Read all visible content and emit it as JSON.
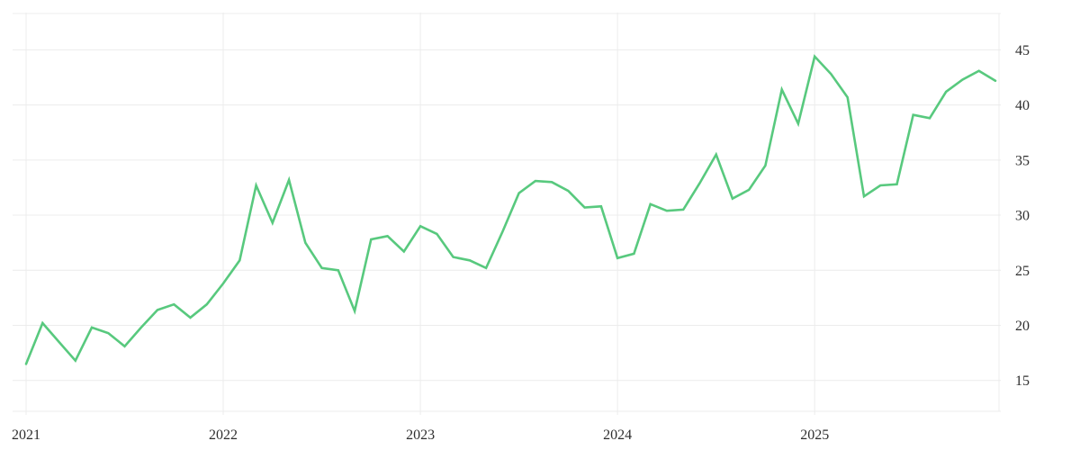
{
  "chart_data": {
    "type": "line",
    "title": "",
    "xlabel": "",
    "ylabel": "",
    "legend": false,
    "grid": true,
    "y_axis_position": "right",
    "background_color": "#ffffff",
    "grid_color": "#ececec",
    "label_color": "#2e2e2e",
    "x_tick_labels": [
      "2021",
      "2022",
      "2023",
      "2024",
      "2025"
    ],
    "x_points_per_year": 12,
    "x_start": "2021-01",
    "y_ticks": [
      15,
      20,
      25,
      30,
      35,
      40,
      45
    ],
    "ylim": [
      12.2,
      48.3
    ],
    "series": [
      {
        "name": "value",
        "color": "#58c97e",
        "line_width": 2.6,
        "values": [
          16.5,
          20.2,
          18.5,
          16.8,
          19.8,
          19.3,
          18.1,
          19.8,
          21.4,
          21.9,
          20.7,
          21.9,
          23.8,
          25.9,
          32.7,
          29.3,
          33.2,
          27.5,
          25.2,
          25.0,
          21.3,
          27.8,
          28.1,
          26.7,
          29.0,
          28.3,
          26.2,
          25.9,
          25.2,
          28.5,
          32.0,
          33.1,
          33.0,
          32.2,
          30.7,
          30.8,
          26.1,
          26.5,
          31.0,
          30.4,
          30.5,
          32.9,
          35.5,
          31.5,
          32.3,
          34.5,
          41.4,
          38.3,
          44.4,
          42.8,
          40.7,
          31.7,
          32.7,
          32.8,
          39.1,
          38.8,
          41.2,
          42.3,
          43.1,
          42.2
        ]
      }
    ]
  }
}
